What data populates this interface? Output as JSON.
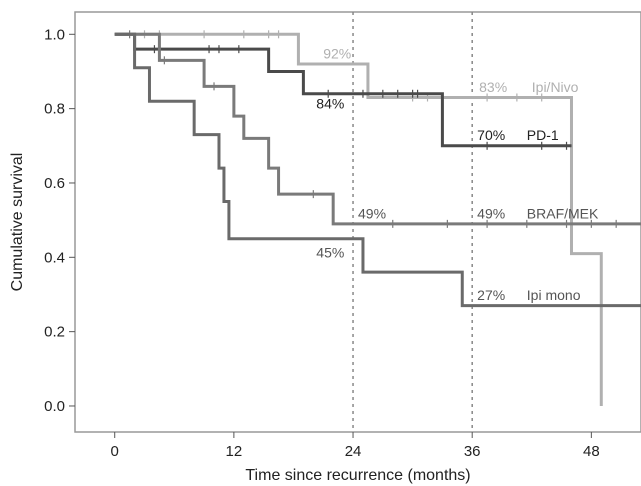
{
  "chart_data": {
    "type": "line",
    "subtype": "kaplan-meier",
    "xlabel": "Time since recurrence (months)",
    "ylabel": "Cumulative survival",
    "xlim": [
      -4,
      53
    ],
    "ylim": [
      -0.07,
      1.06
    ],
    "xticks": [
      0,
      12,
      24,
      36,
      48
    ],
    "yticks": [
      0.0,
      0.2,
      0.4,
      0.6,
      0.8,
      1.0
    ],
    "xtick_labels": [
      "0",
      "12",
      "24",
      "36",
      "48"
    ],
    "ytick_labels": [
      "0.0",
      "0.2",
      "0.4",
      "0.6",
      "0.8",
      "1.0"
    ],
    "reference_lines_x": [
      24,
      36
    ],
    "grid": false,
    "series": [
      {
        "name": "Ipi/Nivo",
        "color": "#b0b0b0",
        "steps": [
          [
            0,
            1.0
          ],
          [
            18.5,
            0.92
          ],
          [
            25.5,
            0.83
          ],
          [
            46,
            0.41
          ],
          [
            49,
            0.0
          ]
        ],
        "censor_x": [
          3,
          4.5,
          9,
          13,
          15.5,
          16.5,
          30,
          31.5,
          33,
          37.5,
          40.5,
          43
        ]
      },
      {
        "name": "PD-1",
        "color": "#4a4a4a",
        "steps": [
          [
            0,
            1.0
          ],
          [
            2,
            0.96
          ],
          [
            15.5,
            0.9
          ],
          [
            19,
            0.84
          ],
          [
            33,
            0.7
          ],
          [
            46,
            0.7
          ]
        ],
        "censor_x": [
          4,
          9.5,
          10.5,
          12.5,
          21.5,
          25,
          27,
          28.5,
          30,
          30.5,
          37.5,
          43,
          45.5
        ]
      },
      {
        "name": "BRAF/MEK",
        "color": "#7a7a7a",
        "steps": [
          [
            0,
            1.0
          ],
          [
            4.5,
            0.93
          ],
          [
            9,
            0.86
          ],
          [
            12,
            0.78
          ],
          [
            13,
            0.72
          ],
          [
            15.5,
            0.64
          ],
          [
            16.5,
            0.57
          ],
          [
            22,
            0.49
          ],
          [
            53,
            0.49
          ]
        ],
        "censor_x": [
          1.5,
          5,
          10,
          20,
          28,
          33.5,
          37.5,
          41.5,
          45.5,
          48,
          50.5
        ]
      },
      {
        "name": "Ipi mono",
        "color": "#6a6a6a",
        "steps": [
          [
            0,
            1.0
          ],
          [
            2,
            0.91
          ],
          [
            3.5,
            0.82
          ],
          [
            8,
            0.73
          ],
          [
            10.5,
            0.64
          ],
          [
            11,
            0.55
          ],
          [
            11.5,
            0.45
          ],
          [
            25,
            0.36
          ],
          [
            35,
            0.27
          ],
          [
            53,
            0.27
          ]
        ],
        "censor_x": []
      }
    ],
    "annotations": [
      {
        "text": "92%",
        "x": 21,
        "y": 0.935,
        "color": "#b0b0b0"
      },
      {
        "text": "84%",
        "x": 20.3,
        "y": 0.8,
        "color": "#222222"
      },
      {
        "text": "83%",
        "x": 36.7,
        "y": 0.845,
        "color": "#b0b0b0"
      },
      {
        "text": "Ipi/Nivo",
        "x": 42,
        "y": 0.845,
        "color": "#b0b0b0"
      },
      {
        "text": "70%",
        "x": 36.5,
        "y": 0.715,
        "color": "#222222"
      },
      {
        "text": "PD-1",
        "x": 41.5,
        "y": 0.715,
        "color": "#222222"
      },
      {
        "text": "49%",
        "x": 24.5,
        "y": 0.505,
        "color": "#555555"
      },
      {
        "text": "49%",
        "x": 36.5,
        "y": 0.505,
        "color": "#555555"
      },
      {
        "text": "BRAF/MEK",
        "x": 41.5,
        "y": 0.505,
        "color": "#555555"
      },
      {
        "text": "45%",
        "x": 20.3,
        "y": 0.4,
        "color": "#555555"
      },
      {
        "text": "27%",
        "x": 36.5,
        "y": 0.285,
        "color": "#555555"
      },
      {
        "text": "Ipi mono",
        "x": 41.5,
        "y": 0.285,
        "color": "#555555"
      }
    ]
  }
}
